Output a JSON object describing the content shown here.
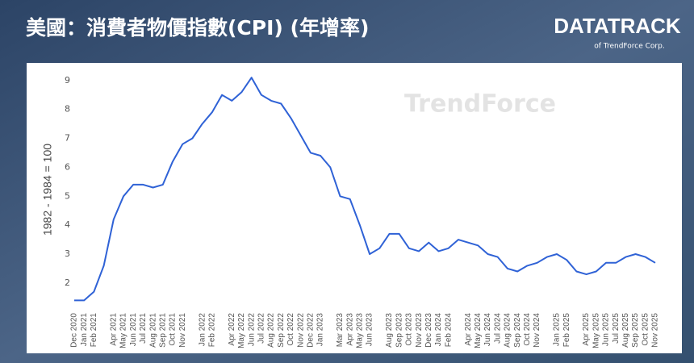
{
  "chart_data": {
    "type": "line",
    "title": "美國：消費者物價指數(CPI) (年增率)",
    "brand": "DATATRACK",
    "brand_sub": "of TrendForce Corp.",
    "watermark": "TrendForce",
    "ylabel": "1982 - 1984 = 100",
    "color": "#2f62d6",
    "categories": [
      "Dec 2020",
      "Jan 2021",
      "Feb 2021",
      null,
      "Apr 2021",
      "May 2021",
      "Jun 2021",
      "Jul 2021",
      "Aug 2021",
      "Sep 2021",
      "Oct 2021",
      "Nov 2021",
      null,
      "Jan 2022",
      "Feb 2022",
      null,
      "Apr 2022",
      "May 2022",
      "Jun 2022",
      "Jul 2022",
      "Aug 2022",
      "Sep 2022",
      "Oct 2022",
      "Nov 2022",
      "Dec 2022",
      "Jan 2023",
      null,
      "Mar 2023",
      "Apr 2023",
      "May 2023",
      "Jun 2023",
      null,
      "Aug 2023",
      "Sep 2023",
      "Oct 2023",
      "Nov 2023",
      "Dec 2023",
      "Jan 2024",
      "Feb 2024",
      null,
      "Apr 2024",
      "May 2024",
      "Jun 2024",
      "Jul 2024",
      "Aug 2024",
      "Sep 2024",
      "Oct 2024",
      "Nov 2024",
      null,
      "Jan 2025",
      "Feb 2025",
      null,
      "Apr 2025",
      "May 2025",
      "Jun 2025",
      "Jul 2025",
      "Aug 2025",
      "Sep 2025",
      "Oct 2025",
      "Nov 2025"
    ],
    "values": [
      1.4,
      1.4,
      1.7,
      2.6,
      4.2,
      5.0,
      5.4,
      5.4,
      5.3,
      5.4,
      6.2,
      6.8,
      7.0,
      7.5,
      7.9,
      8.5,
      8.3,
      8.6,
      9.1,
      8.5,
      8.3,
      8.2,
      7.7,
      7.1,
      6.5,
      6.4,
      6.0,
      5.0,
      4.9,
      4.0,
      3.0,
      3.2,
      3.7,
      3.7,
      3.2,
      3.1,
      3.4,
      3.1,
      3.2,
      3.5,
      3.4,
      3.3,
      3.0,
      2.9,
      2.5,
      2.4,
      2.6,
      2.7,
      2.9,
      3.0,
      2.8,
      2.4,
      2.3,
      2.4,
      2.7,
      2.7,
      2.9,
      3.0,
      2.9,
      2.7
    ],
    "ylim": [
      1.3,
      9.3
    ],
    "yticks": [
      2,
      3,
      4,
      5,
      6,
      7,
      8,
      9
    ],
    "grid": false
  }
}
